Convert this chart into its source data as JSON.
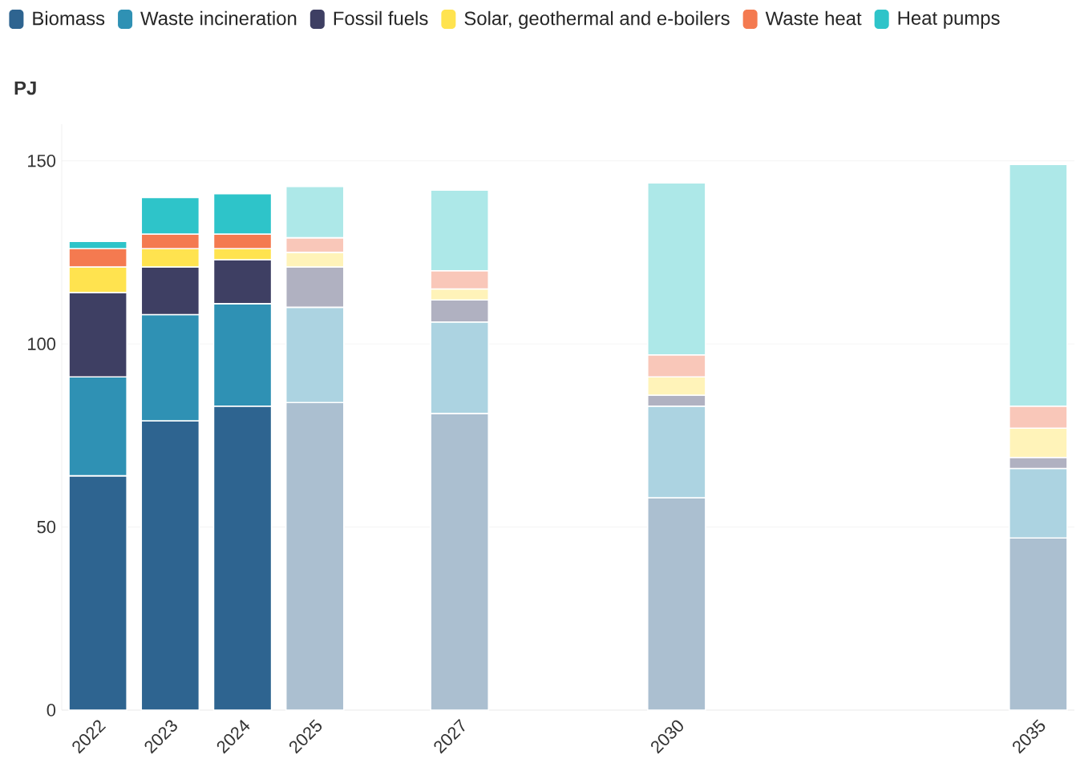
{
  "chart_data": {
    "type": "bar",
    "stacked": true,
    "ylabel": "PJ",
    "x": [
      2022,
      2023,
      2024,
      2025,
      2027,
      2030,
      2035
    ],
    "xlim": [
      2021.5,
      2035.5
    ],
    "xticks": [
      2022,
      2023,
      2024,
      2025,
      2027,
      2030,
      2035
    ],
    "ylim": [
      0,
      160
    ],
    "yticks": [
      0,
      50,
      100,
      150
    ],
    "grid": "y",
    "legend": "top",
    "series": [
      {
        "name": "Biomass",
        "color": "#2e6490",
        "colors": [
          "#2e6490",
          "#2e6490",
          "#2e6490",
          "#abbfd0",
          "#abbfd0",
          "#abbfd0",
          "#abbfd0"
        ],
        "values": [
          64,
          79,
          83,
          84,
          81,
          58,
          47
        ]
      },
      {
        "name": "Waste incineration",
        "color": "#2f91b4",
        "colors": [
          "#2f91b4",
          "#2f91b4",
          "#2f91b4",
          "#acd3e1",
          "#acd3e1",
          "#acd3e1",
          "#acd3e1"
        ],
        "values": [
          27,
          29,
          28,
          26,
          25,
          25,
          19
        ]
      },
      {
        "name": "Fossil fuels",
        "color": "#3e3f63",
        "colors": [
          "#3e3f63",
          "#3e3f63",
          "#3e3f63",
          "#b0b1c1",
          "#b0b1c1",
          "#b0b1c1",
          "#b0b1c1"
        ],
        "values": [
          23,
          13,
          12,
          11,
          6,
          3,
          3
        ]
      },
      {
        "name": "Solar, geothermal and e-boilers",
        "color": "#ffe34f",
        "colors": [
          "#ffe34f",
          "#ffe34f",
          "#ffe34f",
          "#fff3b9",
          "#fff3b9",
          "#fff3b9",
          "#fff3b9"
        ],
        "values": [
          7,
          5,
          3,
          4,
          3,
          5,
          8
        ]
      },
      {
        "name": "Waste heat",
        "color": "#f47a50",
        "colors": [
          "#f47a50",
          "#f47a50",
          "#f47a50",
          "#f9c7b9",
          "#f9c7b9",
          "#f9c7b9",
          "#f9c7b9"
        ],
        "values": [
          5,
          4,
          4,
          4,
          5,
          6,
          6
        ]
      },
      {
        "name": "Heat pumps",
        "color": "#2ec4c9",
        "colors": [
          "#2ec4c9",
          "#2ec4c9",
          "#2ec4c9",
          "#ade8e8",
          "#ade8e8",
          "#ade8e8",
          "#ade8e8"
        ],
        "values": [
          2,
          10,
          11,
          14,
          22,
          47,
          66
        ]
      }
    ]
  }
}
